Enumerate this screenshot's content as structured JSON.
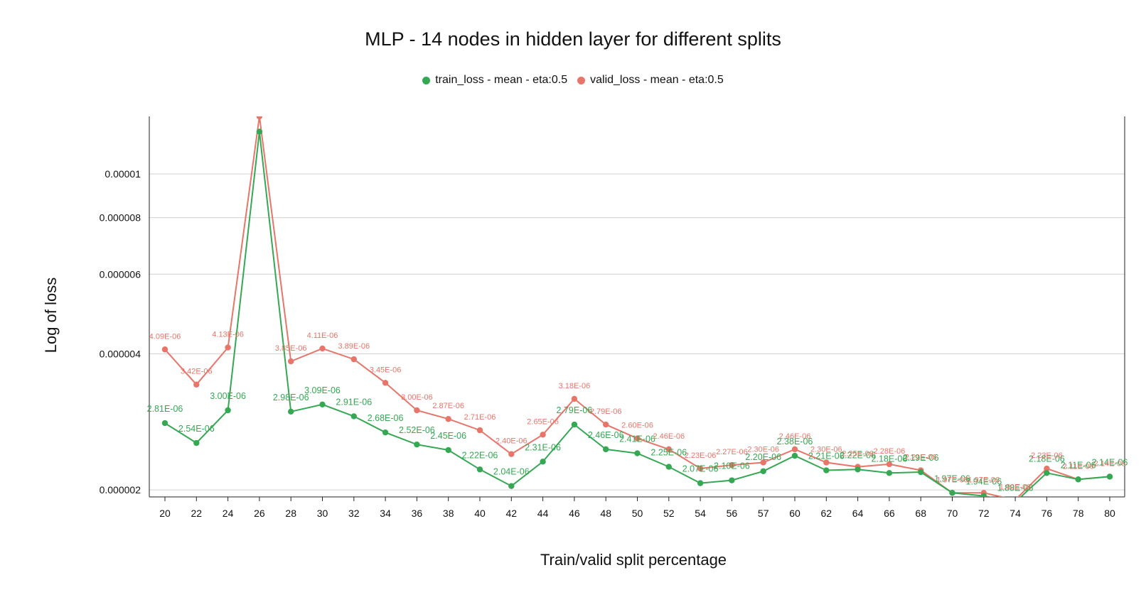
{
  "chart_data": {
    "type": "line",
    "title": "MLP - 14 nodes in hidden layer for different splits",
    "xlabel": "Train/valid split percentage",
    "ylabel": "Log of loss",
    "y_scale": "log",
    "ylim": [
      1.93e-06,
      1.34e-05
    ],
    "y_ticks": [
      {
        "value": 2e-06,
        "label": "0.000002"
      },
      {
        "value": 4e-06,
        "label": "0.000004"
      },
      {
        "value": 6e-06,
        "label": "0.000006"
      },
      {
        "value": 8e-06,
        "label": "0.000008"
      },
      {
        "value": 1e-05,
        "label": "0.00001"
      }
    ],
    "grid": "horizontal",
    "legend_position": "top-center",
    "categories": [
      "20",
      "22",
      "24",
      "26",
      "28",
      "30",
      "32",
      "34",
      "36",
      "38",
      "40",
      "42",
      "44",
      "46",
      "48",
      "50",
      "52",
      "54",
      "56",
      "57",
      "60",
      "62",
      "64",
      "66",
      "68",
      "70",
      "72",
      "74",
      "76",
      "78",
      "80"
    ],
    "series": [
      {
        "name": "train_loss - mean - eta:0.5",
        "color": "#34a853",
        "values": [
          2.81e-06,
          2.54e-06,
          3e-06,
          1.24e-05,
          2.98e-06,
          3.09e-06,
          2.91e-06,
          2.68e-06,
          2.52e-06,
          2.45e-06,
          2.22e-06,
          2.04e-06,
          2.31e-06,
          2.79e-06,
          2.46e-06,
          2.41e-06,
          2.25e-06,
          2.07e-06,
          2.1e-06,
          2.2e-06,
          2.38e-06,
          2.21e-06,
          2.22e-06,
          2.18e-06,
          2.19e-06,
          1.97e-06,
          1.94e-06,
          1.88e-06,
          2.18e-06,
          2.11e-06,
          2.14e-06
        ],
        "labels": [
          "2.81E-06",
          "2.54E-06",
          "3.00E-06",
          "",
          "2.98E-06",
          "3.09E-06",
          "2.91E-06",
          "2.68E-06",
          "2.52E-06",
          "2.45E-06",
          "2.22E-06",
          "2.04E-06",
          "2.31E-06",
          "2.79E-06",
          "2.46E-06",
          "2.41E-06",
          "2.25E-06",
          "2.07E-06",
          "2.10E-06",
          "2.20E-06",
          "2.38E-06",
          "2.21E-06",
          "2.22E-06",
          "2.18E-06",
          "2.19E-06",
          "1.97E-06",
          "1.94E-06",
          "1.88E-06",
          "2.18E-06",
          "2.11E-06",
          "2.14E-06"
        ]
      },
      {
        "name": "valid_loss - mean - eta:0.5",
        "color": "#e8756a",
        "values": [
          4.09e-06,
          3.42e-06,
          4.13e-06,
          1.34e-05,
          3.85e-06,
          4.11e-06,
          3.89e-06,
          3.45e-06,
          3e-06,
          2.87e-06,
          2.71e-06,
          2.4e-06,
          2.65e-06,
          3.18e-06,
          2.79e-06,
          2.6e-06,
          2.46e-06,
          2.23e-06,
          2.27e-06,
          2.3e-06,
          2.46e-06,
          2.3e-06,
          2.25e-06,
          2.28e-06,
          2.21e-06,
          1.97e-06,
          1.97e-06,
          1.9e-06,
          2.23e-06,
          2.11e-06,
          2.14e-06
        ],
        "labels": [
          "4.09E-06",
          "3.42E-06",
          "4.13E-06",
          "",
          "3.85E-06",
          "4.11E-06",
          "3.89E-06",
          "3.45E-06",
          "3.00E-06",
          "2.87E-06",
          "2.71E-06",
          "2.40E-06",
          "2.65E-06",
          "3.18E-06",
          "2.79E-06",
          "2.60E-06",
          "2.46E-06",
          "2.23E-06",
          "2.27E-06",
          "2.30E-06",
          "2.46E-06",
          "2.30E-06",
          "2.25E-06",
          "2.28E-06",
          "2.21E-06",
          "1.97E-06",
          "1.97E-06",
          "1.90E-06",
          "2.23E-06",
          "2.11E-06",
          "2.14E-06"
        ]
      }
    ]
  }
}
